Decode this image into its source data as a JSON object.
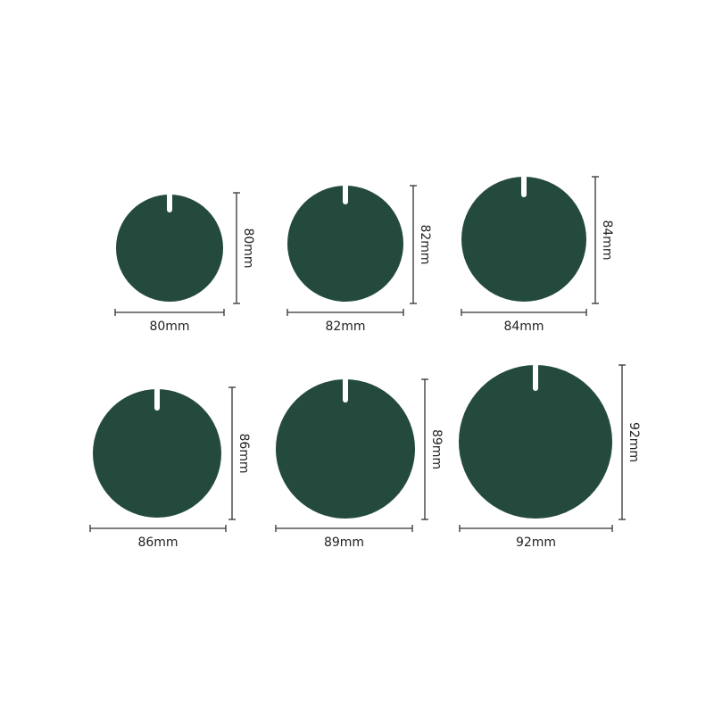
{
  "disc_color": "#244a3d",
  "line_color": "#333333",
  "discs": [
    {
      "width_label": "80mm",
      "height_label": "80mm"
    },
    {
      "width_label": "82mm",
      "height_label": "82mm"
    },
    {
      "width_label": "84mm",
      "height_label": "84mm"
    },
    {
      "width_label": "86mm",
      "height_label": "86mm"
    },
    {
      "width_label": "89mm",
      "height_label": "89mm"
    },
    {
      "width_label": "92mm",
      "height_label": "92mm"
    }
  ]
}
